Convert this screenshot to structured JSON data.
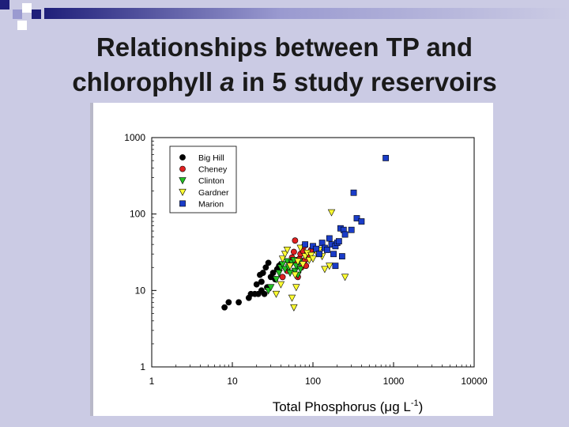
{
  "slide": {
    "title_part1": "Relationships between TP and",
    "title_part2": "chlorophyll ",
    "title_italic": "a",
    "title_part3": " in 5 study reservoirs"
  },
  "colors": {
    "background": "#cbcbe4",
    "accent": "#1f1f7a"
  },
  "chart_data": {
    "type": "scatter",
    "xlabel": "Total Phosphorus (μg L",
    "xlabel_sup": "-1",
    "xlabel_close": ")",
    "ylabel": "",
    "xscale": "log",
    "yscale": "log",
    "xlim": [
      1,
      10000
    ],
    "ylim": [
      1,
      1000
    ],
    "x_ticks": [
      "1",
      "10",
      "100",
      "1000",
      "10000"
    ],
    "y_ticks": [
      "1",
      "10",
      "100",
      "1000"
    ],
    "legend_position": "top-left",
    "grid": false,
    "series": [
      {
        "name": "Big Hill",
        "color": "#000000",
        "marker": "circle",
        "points": [
          [
            8,
            6
          ],
          [
            9,
            7
          ],
          [
            12,
            7
          ],
          [
            16,
            8
          ],
          [
            17,
            9
          ],
          [
            19,
            9
          ],
          [
            20,
            12
          ],
          [
            22,
            16
          ],
          [
            23,
            13
          ],
          [
            24,
            17
          ],
          [
            25,
            9
          ],
          [
            26,
            20
          ],
          [
            27,
            11
          ],
          [
            28,
            23
          ],
          [
            30,
            15
          ],
          [
            32,
            17
          ],
          [
            34,
            14
          ],
          [
            36,
            19
          ],
          [
            38,
            21
          ],
          [
            40,
            22
          ],
          [
            21,
            9
          ],
          [
            23,
            10
          ]
        ]
      },
      {
        "name": "Cheney",
        "color": "#e02020",
        "marker": "circle",
        "points": [
          [
            42,
            15
          ],
          [
            48,
            18
          ],
          [
            52,
            22
          ],
          [
            55,
            27
          ],
          [
            58,
            32
          ],
          [
            60,
            45
          ],
          [
            62,
            23
          ],
          [
            65,
            15
          ],
          [
            68,
            26
          ],
          [
            70,
            30
          ],
          [
            72,
            20
          ],
          [
            75,
            33
          ],
          [
            78,
            38
          ],
          [
            80,
            25
          ],
          [
            85,
            30
          ],
          [
            90,
            28
          ],
          [
            95,
            34
          ],
          [
            82,
            21
          ]
        ]
      },
      {
        "name": "Clinton",
        "color": "#22c022",
        "marker": "triangle-down",
        "points": [
          [
            28,
            10
          ],
          [
            30,
            11
          ],
          [
            35,
            14
          ],
          [
            38,
            17
          ],
          [
            40,
            20
          ],
          [
            42,
            22
          ],
          [
            45,
            19
          ],
          [
            48,
            24
          ],
          [
            50,
            20
          ],
          [
            52,
            17
          ],
          [
            55,
            23
          ],
          [
            58,
            25
          ],
          [
            60,
            18
          ],
          [
            62,
            21
          ],
          [
            65,
            16
          ],
          [
            68,
            24
          ],
          [
            70,
            19
          ]
        ]
      },
      {
        "name": "Gardner",
        "color": "#ffff33",
        "marker": "triangle-down",
        "points": [
          [
            35,
            9
          ],
          [
            40,
            12
          ],
          [
            42,
            26
          ],
          [
            45,
            30
          ],
          [
            48,
            34
          ],
          [
            52,
            21
          ],
          [
            55,
            8
          ],
          [
            58,
            6
          ],
          [
            60,
            16
          ],
          [
            62,
            11
          ],
          [
            65,
            24
          ],
          [
            70,
            36
          ],
          [
            75,
            22
          ],
          [
            80,
            28
          ],
          [
            85,
            31
          ],
          [
            90,
            25
          ],
          [
            95,
            29
          ],
          [
            100,
            26
          ],
          [
            110,
            32
          ],
          [
            120,
            34
          ],
          [
            140,
            19
          ],
          [
            160,
            21
          ],
          [
            170,
            105
          ],
          [
            250,
            15
          ],
          [
            130,
            28
          ]
        ]
      },
      {
        "name": "Marion",
        "color": "#1a3cc8",
        "marker": "square",
        "points": [
          [
            80,
            40
          ],
          [
            100,
            38
          ],
          [
            110,
            35
          ],
          [
            120,
            30
          ],
          [
            130,
            42
          ],
          [
            140,
            36
          ],
          [
            150,
            34
          ],
          [
            160,
            48
          ],
          [
            170,
            40
          ],
          [
            180,
            30
          ],
          [
            190,
            38
          ],
          [
            200,
            42
          ],
          [
            210,
            44
          ],
          [
            220,
            65
          ],
          [
            230,
            28
          ],
          [
            240,
            62
          ],
          [
            250,
            54
          ],
          [
            300,
            62
          ],
          [
            320,
            190
          ],
          [
            350,
            88
          ],
          [
            400,
            80
          ],
          [
            800,
            540
          ],
          [
            190,
            21
          ]
        ]
      }
    ]
  }
}
